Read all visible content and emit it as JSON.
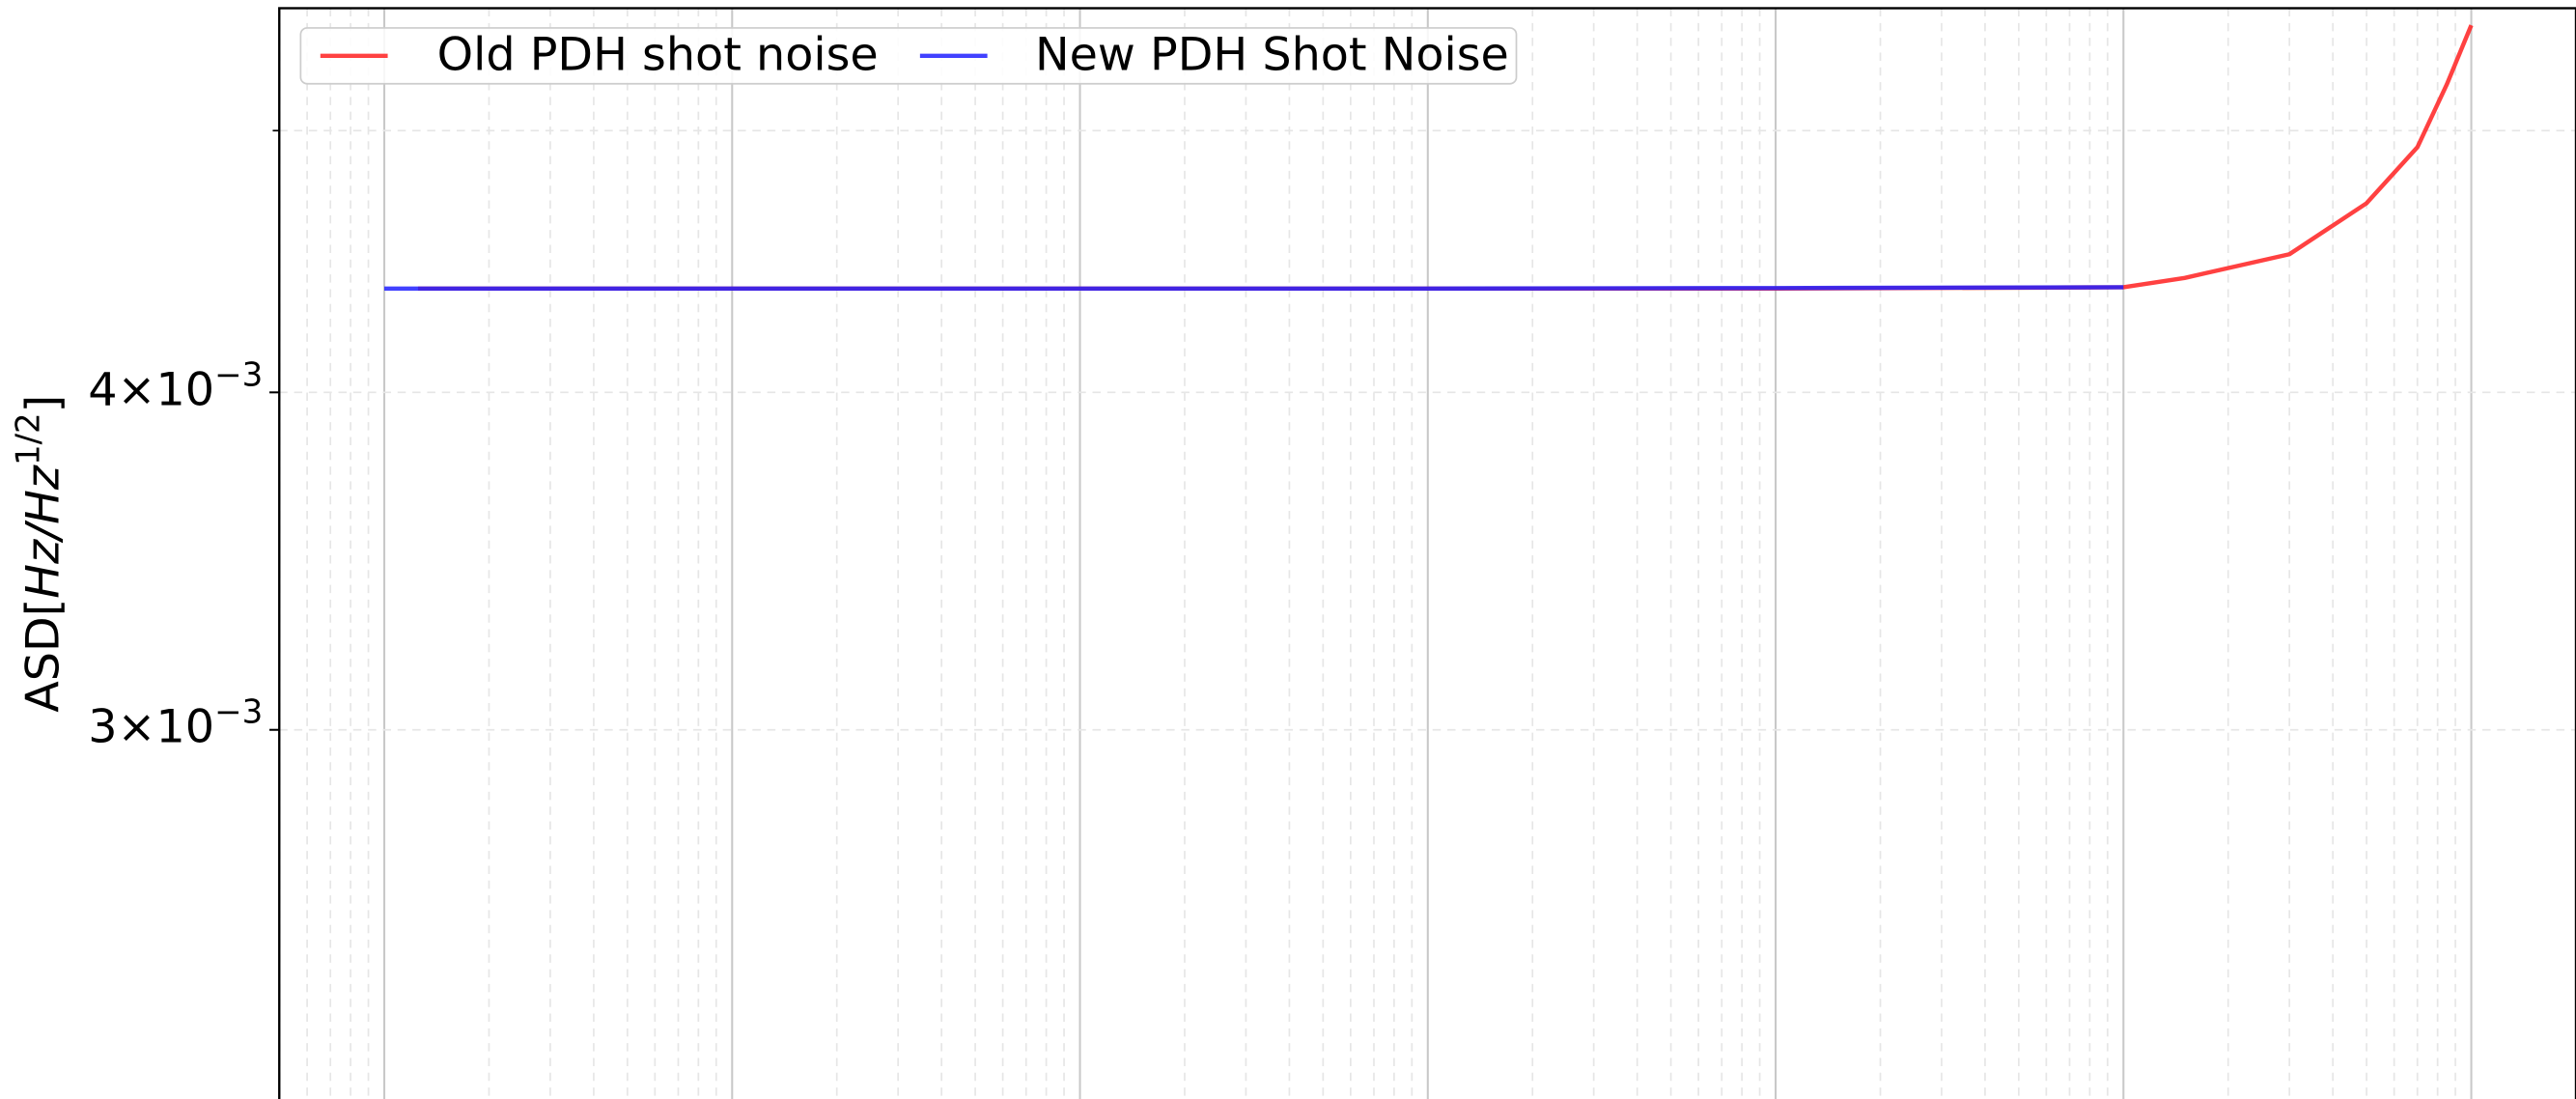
{
  "chart_data": {
    "type": "line",
    "ylabel": {
      "prefix": "ASD[",
      "math": "Hz/Hz",
      "sup": "1/2",
      "suffix": "]"
    },
    "xscale": "log",
    "yscale": "log",
    "xlim": [
      0.499,
      2000000
    ],
    "ylim": [
      0.00219,
      0.00555
    ],
    "x_gridlines": [
      1,
      10,
      100,
      1000,
      10000,
      100000,
      1000000
    ],
    "yticks": [
      {
        "value": 0.003,
        "label": "3×10−3"
      },
      {
        "value": 0.004,
        "label": "4×10−3"
      }
    ],
    "yminor_ticks": [
      0.005
    ],
    "grid": true,
    "legend": "upper left",
    "series": [
      {
        "name": "Old PDH shot noise",
        "color": "#ff2020",
        "x": [
          1.25,
          10,
          100,
          1000,
          10000,
          100000,
          150000,
          300000,
          500000,
          700000,
          850000,
          1000000
        ],
        "values": [
          0.00437,
          0.00437,
          0.00437,
          0.00437,
          0.00437,
          0.004375,
          0.00441,
          0.0045,
          0.0047,
          0.00493,
          0.0052,
          0.00547
        ]
      },
      {
        "name": "New PDH Shot Noise",
        "color": "#2020ff",
        "x": [
          1,
          10,
          100,
          1000,
          10000,
          100000
        ],
        "values": [
          0.00437,
          0.00437,
          0.00437,
          0.00437,
          0.004372,
          0.004375
        ]
      }
    ]
  }
}
